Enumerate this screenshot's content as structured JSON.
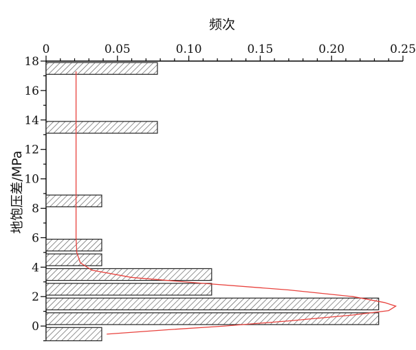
{
  "chart_data": {
    "type": "bar",
    "orientation": "horizontal",
    "xlabel": "频次",
    "ylabel": "地饱压差/MPa",
    "xlim": [
      0,
      0.25
    ],
    "ylim": [
      -1,
      18
    ],
    "x_ticks": [
      "0",
      "0.05",
      "0.10",
      "0.15",
      "0.20",
      "0.25"
    ],
    "y_ticks": [
      "0",
      "2",
      "4",
      "6",
      "8",
      "10",
      "12",
      "14",
      "16",
      "18"
    ],
    "x_axis_position": "top",
    "bar_fill": "diagonal hatch",
    "bars": [
      {
        "y0": -1,
        "y1": -0.1,
        "value": 0.039
      },
      {
        "y0": 0.1,
        "y1": 0.9,
        "value": 0.233
      },
      {
        "y0": 1.1,
        "y1": 1.9,
        "value": 0.233
      },
      {
        "y0": 2.1,
        "y1": 2.9,
        "value": 0.116
      },
      {
        "y0": 3.1,
        "y1": 3.9,
        "value": 0.116
      },
      {
        "y0": 4.1,
        "y1": 4.9,
        "value": 0.039
      },
      {
        "y0": 5.1,
        "y1": 5.9,
        "value": 0.039
      },
      {
        "y0": 8.1,
        "y1": 8.9,
        "value": 0.039
      },
      {
        "y0": 13.1,
        "y1": 13.9,
        "value": 0.078
      },
      {
        "y0": 17.1,
        "y1": 17.9,
        "value": 0.078
      }
    ],
    "fit_curve": {
      "color": "#e8413c",
      "points": [
        [
          0.021,
          17.3
        ],
        [
          0.021,
          10.0
        ],
        [
          0.021,
          6.0
        ],
        [
          0.0215,
          5.0
        ],
        [
          0.024,
          4.3
        ],
        [
          0.032,
          3.8
        ],
        [
          0.06,
          3.3
        ],
        [
          0.11,
          2.9
        ],
        [
          0.17,
          2.45
        ],
        [
          0.215,
          2.0
        ],
        [
          0.237,
          1.6
        ],
        [
          0.245,
          1.35
        ],
        [
          0.24,
          1.05
        ],
        [
          0.215,
          0.75
        ],
        [
          0.17,
          0.35
        ],
        [
          0.125,
          0.0
        ],
        [
          0.085,
          -0.25
        ],
        [
          0.0425,
          -0.55
        ]
      ]
    }
  }
}
